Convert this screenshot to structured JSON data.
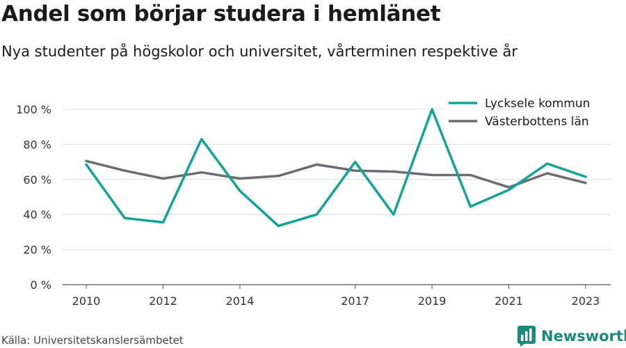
{
  "title": "Andel som börjar studera i hemlänet",
  "subtitle": "Nya studenter på högskolor och universitet, vårterminen respektive år",
  "source": "Källa: Universitetskanslersämbetet",
  "brand": {
    "name": "Newsworthy",
    "icon": "newsworthy-logo-icon",
    "color": "#1a8a7a"
  },
  "chart_data": {
    "type": "line",
    "title": "Andel som börjar studera i hemlänet",
    "xlabel": "",
    "ylabel": "",
    "x": [
      2010,
      2011,
      2012,
      2013,
      2014,
      2015,
      2016,
      2017,
      2018,
      2019,
      2020,
      2021,
      2022,
      2023
    ],
    "x_ticks": [
      2010,
      2012,
      2014,
      2017,
      2019,
      2021,
      2023
    ],
    "ylim": [
      0,
      100
    ],
    "y_ticks": [
      0,
      20,
      40,
      60,
      80,
      100
    ],
    "y_tick_labels": [
      "0 %",
      "20 %",
      "40 %",
      "60 %",
      "80 %",
      "100 %"
    ],
    "grid": true,
    "legend_position": "top-right",
    "series": [
      {
        "name": "Lycksele kommun",
        "color": "#10a39a",
        "values": [
          68.5,
          38,
          35.5,
          83,
          53.5,
          33.5,
          40,
          70,
          40,
          100,
          44.5,
          54,
          69,
          61.5
        ]
      },
      {
        "name": "Västerbottens län",
        "color": "#6d6c72",
        "values": [
          70.5,
          65,
          60.5,
          64,
          60.5,
          62,
          68.5,
          65,
          64.5,
          62.5,
          62.5,
          55.5,
          63.5,
          58
        ]
      }
    ]
  }
}
